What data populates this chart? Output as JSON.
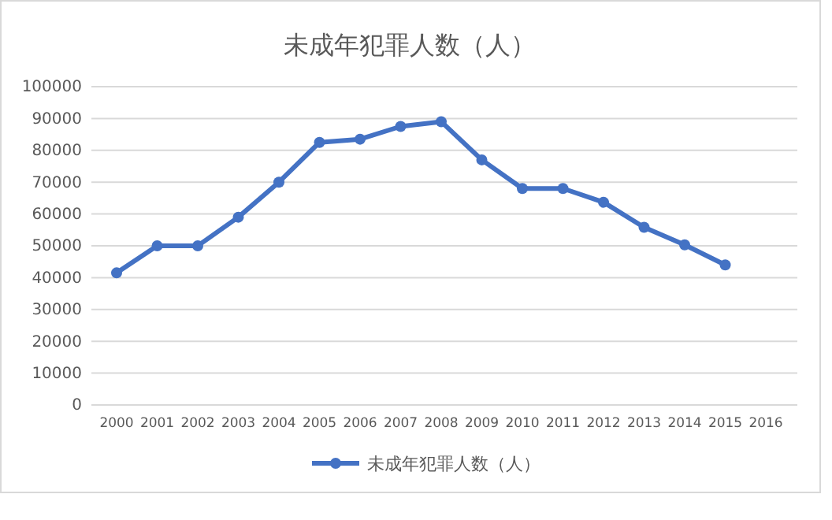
{
  "chart_data": {
    "type": "line",
    "title": "未成年犯罪人数（人）",
    "categories": [
      "2000",
      "2001",
      "2002",
      "2003",
      "2004",
      "2005",
      "2006",
      "2007",
      "2008",
      "2009",
      "2010",
      "2011",
      "2012",
      "2013",
      "2014",
      "2015",
      "2016"
    ],
    "series": [
      {
        "name": "未成年犯罪人数（人）",
        "color": "#4472c4",
        "values": [
          41500,
          50000,
          50000,
          59000,
          70000,
          82500,
          83500,
          87500,
          89000,
          77000,
          68000,
          68000,
          63700,
          55800,
          50300,
          44000,
          null
        ]
      }
    ],
    "ylim": [
      0,
      100000
    ],
    "yticks": [
      0,
      10000,
      20000,
      30000,
      40000,
      50000,
      60000,
      70000,
      80000,
      90000,
      100000
    ],
    "grid": "y",
    "legend": "bottom",
    "marker": "circle",
    "line_style": "solid"
  }
}
